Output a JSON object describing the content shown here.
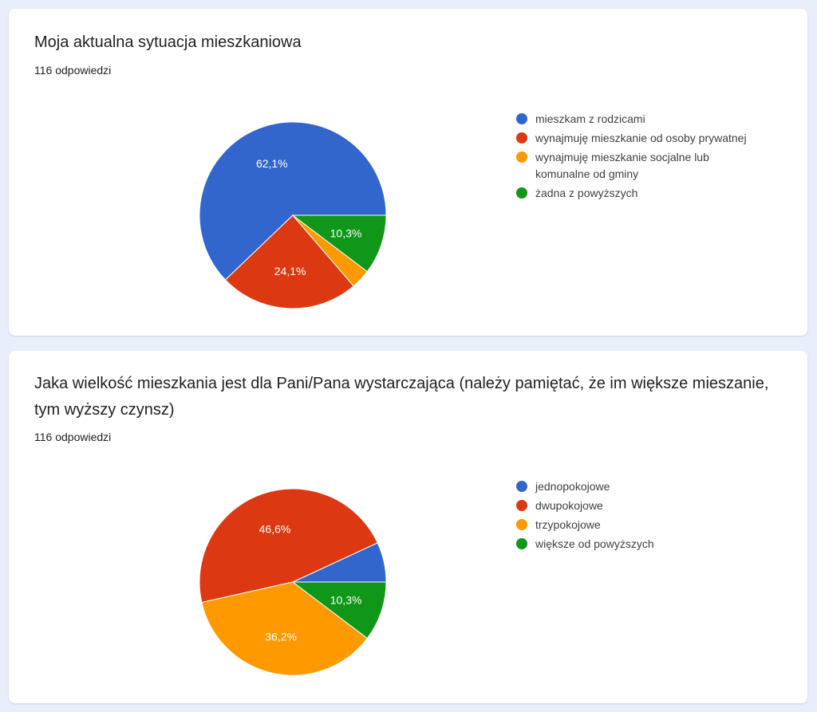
{
  "charts": [
    {
      "title": "Moja aktualna sytuacja mieszkaniowa",
      "responses": "116 odpowiedzi",
      "legend": [
        {
          "label": "mieszkam z rodzicami",
          "color": "#3366cc"
        },
        {
          "label": "wynajmuję mieszkanie od osoby prywatnej",
          "color": "#dc3912"
        },
        {
          "label": "wynajmuję mieszkanie socjalne lub komunalne od gminy",
          "color": "#ff9900"
        },
        {
          "label": "żadna z powyższych",
          "color": "#109618"
        }
      ]
    },
    {
      "title": "Jaka wielkość mieszkania jest dla Pani/Pana wystarczająca (należy pamiętać, że im większe mieszanie, tym wyższy czynsz)",
      "responses": "116 odpowiedzi",
      "legend": [
        {
          "label": "jednopokojowe",
          "color": "#3366cc"
        },
        {
          "label": "dwupokojowe",
          "color": "#dc3912"
        },
        {
          "label": "trzypokojowe",
          "color": "#ff9900"
        },
        {
          "label": "większe od powyższych",
          "color": "#109618"
        }
      ]
    }
  ],
  "chart_data": [
    {
      "type": "pie",
      "title": "Moja aktualna sytuacja mieszkaniowa",
      "categories": [
        "mieszkam z rodzicami",
        "wynajmuję mieszkanie od osoby prywatnej",
        "wynajmuję mieszkanie socjalne lub komunalne od gminy",
        "żadna z powyższych"
      ],
      "values": [
        62.1,
        24.1,
        3.4,
        10.3
      ],
      "labels": [
        "62,1%",
        "24,1%",
        "",
        "10,3%"
      ],
      "colors": [
        "#3366cc",
        "#dc3912",
        "#ff9900",
        "#109618"
      ],
      "legend_position": "right"
    },
    {
      "type": "pie",
      "title": "Jaka wielkość mieszkania jest dla Pani/Pana wystarczająca (należy pamiętać, że im większe mieszanie, tym wyższy czynsz)",
      "categories": [
        "jednopokojowe",
        "dwupokojowe",
        "trzypokojowe",
        "większe od powyższych"
      ],
      "values": [
        6.9,
        46.6,
        36.2,
        10.3
      ],
      "labels": [
        "",
        "46,6%",
        "36,2%",
        "10,3%"
      ],
      "colors": [
        "#3366cc",
        "#dc3912",
        "#ff9900",
        "#109618"
      ],
      "legend_position": "right"
    }
  ]
}
